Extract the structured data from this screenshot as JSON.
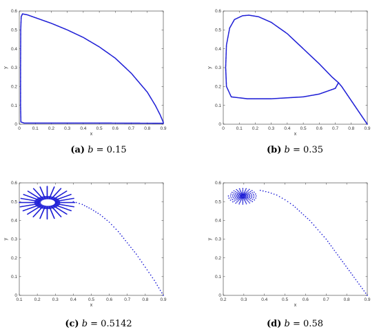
{
  "colors": {
    "series": "#1f1fd6",
    "axis": "#333333",
    "background": "#ffffff"
  },
  "chart_data": [
    {
      "type": "scatter",
      "xlabel": "x",
      "ylabel": "y",
      "xlim": [
        0,
        0.9
      ],
      "ylim": [
        0,
        0.6
      ],
      "xticks": [
        "0",
        "0.1",
        "0.2",
        "0.3",
        "0.4",
        "0.5",
        "0.6",
        "0.7",
        "0.8",
        "0.9"
      ],
      "yticks": [
        "0",
        "0.1",
        "0.2",
        "0.3",
        "0.4",
        "0.5",
        "0.6"
      ],
      "caption": {
        "label": "(a)",
        "param": "b",
        "value": "= 0.15"
      },
      "trajectory": {
        "kind": "polyline",
        "points": [
          [
            0.9,
            0.005
          ],
          [
            0.5,
            0.006
          ],
          [
            0.2,
            0.006
          ],
          [
            0.03,
            0.006
          ],
          [
            0.01,
            0.012
          ],
          [
            0.008,
            0.1
          ],
          [
            0.008,
            0.3
          ],
          [
            0.009,
            0.5
          ],
          [
            0.012,
            0.57
          ],
          [
            0.02,
            0.585
          ],
          [
            0.05,
            0.58
          ],
          [
            0.1,
            0.565
          ],
          [
            0.2,
            0.535
          ],
          [
            0.3,
            0.5
          ],
          [
            0.4,
            0.46
          ],
          [
            0.5,
            0.41
          ],
          [
            0.6,
            0.35
          ],
          [
            0.7,
            0.27
          ],
          [
            0.8,
            0.17
          ],
          [
            0.85,
            0.1
          ],
          [
            0.88,
            0.05
          ],
          [
            0.9,
            0.01
          ]
        ]
      }
    },
    {
      "type": "scatter",
      "xlabel": "x",
      "ylabel": "y",
      "xlim": [
        0,
        0.9
      ],
      "ylim": [
        0,
        0.6
      ],
      "xticks": [
        "0",
        "0.1",
        "0.2",
        "0.3",
        "0.4",
        "0.5",
        "0.6",
        "0.7",
        "0.8",
        "0.9"
      ],
      "yticks": [
        "0",
        "0.1",
        "0.2",
        "0.3",
        "0.4",
        "0.5",
        "0.6"
      ],
      "caption": {
        "label": "(b)",
        "param": "b",
        "value": "= 0.35"
      },
      "trajectory": {
        "kind": "limit-cycle",
        "points": [
          [
            0.9,
            0.0
          ],
          [
            0.86,
            0.05
          ],
          [
            0.82,
            0.1
          ],
          [
            0.78,
            0.15
          ],
          [
            0.74,
            0.2
          ],
          [
            0.72,
            0.22
          ],
          [
            0.7,
            0.19
          ],
          [
            0.6,
            0.16
          ],
          [
            0.5,
            0.145
          ],
          [
            0.3,
            0.135
          ],
          [
            0.15,
            0.135
          ],
          [
            0.05,
            0.145
          ],
          [
            0.02,
            0.2
          ],
          [
            0.015,
            0.3
          ],
          [
            0.02,
            0.42
          ],
          [
            0.04,
            0.51
          ],
          [
            0.07,
            0.555
          ],
          [
            0.12,
            0.575
          ],
          [
            0.16,
            0.578
          ],
          [
            0.22,
            0.57
          ],
          [
            0.3,
            0.54
          ],
          [
            0.4,
            0.48
          ],
          [
            0.5,
            0.4
          ],
          [
            0.6,
            0.32
          ],
          [
            0.68,
            0.25
          ],
          [
            0.72,
            0.22
          ]
        ]
      }
    },
    {
      "type": "scatter",
      "xlabel": "x",
      "ylabel": "y",
      "xlim": [
        0.1,
        0.9
      ],
      "ylim": [
        0,
        0.6
      ],
      "xticks": [
        "0.1",
        "0.2",
        "0.3",
        "0.4",
        "0.5",
        "0.6",
        "0.7",
        "0.8",
        "0.9"
      ],
      "yticks": [
        "0",
        "0.1",
        "0.2",
        "0.3",
        "0.4",
        "0.5",
        "0.6"
      ],
      "caption": {
        "label": "(c)",
        "param": "b",
        "value": "= 0.5142"
      },
      "trajectory": {
        "kind": "spiral",
        "center": [
          0.255,
          0.495
        ],
        "rx_outer": 0.155,
        "ry_outer": 0.088,
        "rx_inner": 0.045,
        "ry_inner": 0.022,
        "turns": 30,
        "approach": [
          [
            0.9,
            0.0
          ],
          [
            0.85,
            0.08
          ],
          [
            0.8,
            0.15
          ],
          [
            0.75,
            0.22
          ],
          [
            0.7,
            0.28
          ],
          [
            0.65,
            0.34
          ],
          [
            0.6,
            0.39
          ],
          [
            0.55,
            0.43
          ],
          [
            0.5,
            0.46
          ],
          [
            0.45,
            0.485
          ],
          [
            0.4,
            0.5
          ]
        ]
      }
    },
    {
      "type": "scatter",
      "xlabel": "x",
      "ylabel": "y",
      "xlim": [
        0.2,
        0.9
      ],
      "ylim": [
        0,
        0.6
      ],
      "xticks": [
        "0.2",
        "0.3",
        "0.4",
        "0.5",
        "0.6",
        "0.7",
        "0.8",
        "0.9"
      ],
      "yticks": [
        "0",
        "0.1",
        "0.2",
        "0.3",
        "0.4",
        "0.5",
        "0.6"
      ],
      "caption": {
        "label": "(d)",
        "param": "b",
        "value": "= 0.58"
      },
      "trajectory": {
        "kind": "spiral",
        "center": [
          0.295,
          0.53
        ],
        "rx_outer": 0.07,
        "ry_outer": 0.045,
        "rx_inner": 0.006,
        "ry_inner": 0.004,
        "turns": 7,
        "approach": [
          [
            0.9,
            0.0
          ],
          [
            0.86,
            0.06
          ],
          [
            0.82,
            0.12
          ],
          [
            0.78,
            0.18
          ],
          [
            0.74,
            0.24
          ],
          [
            0.7,
            0.3
          ],
          [
            0.66,
            0.35
          ],
          [
            0.62,
            0.4
          ],
          [
            0.58,
            0.44
          ],
          [
            0.54,
            0.48
          ],
          [
            0.5,
            0.51
          ],
          [
            0.46,
            0.535
          ],
          [
            0.42,
            0.55
          ],
          [
            0.38,
            0.56
          ]
        ]
      }
    }
  ]
}
